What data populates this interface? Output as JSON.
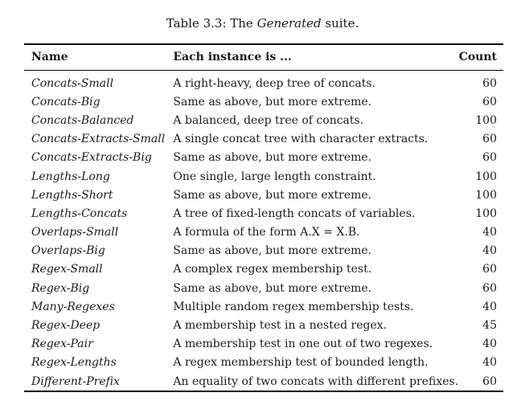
{
  "caption": {
    "prefix": "Table 3.3: The ",
    "emphasis": "Generated",
    "suffix": " suite."
  },
  "table": {
    "headers": {
      "name": "Name",
      "description": "Each instance is ...",
      "count": "Count"
    },
    "rows": [
      {
        "name": "Concats-Small",
        "description": "A right-heavy, deep tree of concats.",
        "count": "60"
      },
      {
        "name": "Concats-Big",
        "description": "Same as above, but more extreme.",
        "count": "60"
      },
      {
        "name": "Concats-Balanced",
        "description": "A balanced, deep tree of concats.",
        "count": "100"
      },
      {
        "name": "Concats-Extracts-Small",
        "description": "A single concat tree with character extracts.",
        "count": "60"
      },
      {
        "name": "Concats-Extracts-Big",
        "description": "Same as above, but more extreme.",
        "count": "60"
      },
      {
        "name": "Lengths-Long",
        "description": "One single, large length constraint.",
        "count": "100"
      },
      {
        "name": "Lengths-Short",
        "description": "Same as above, but more extreme.",
        "count": "100"
      },
      {
        "name": "Lengths-Concats",
        "description": "A tree of fixed-length concats of variables.",
        "count": "100"
      },
      {
        "name": "Overlaps-Small",
        "description": "A formula of the form A.X = X.B.",
        "count": "40"
      },
      {
        "name": "Overlaps-Big",
        "description": "Same as above, but more extreme.",
        "count": "40"
      },
      {
        "name": "Regex-Small",
        "description": "A complex regex membership test.",
        "count": "60"
      },
      {
        "name": "Regex-Big",
        "description": "Same as above, but more extreme.",
        "count": "60"
      },
      {
        "name": "Many-Regexes",
        "description": "Multiple random regex membership tests.",
        "count": "40"
      },
      {
        "name": "Regex-Deep",
        "description": "A membership test in a nested regex.",
        "count": "45"
      },
      {
        "name": "Regex-Pair",
        "description": "A membership test in one out of two regexes.",
        "count": "40"
      },
      {
        "name": "Regex-Lengths",
        "description": "A regex membership test of bounded length.",
        "count": "40"
      },
      {
        "name": "Different-Prefix",
        "description": "An equality of two concats with different prefixes.",
        "count": "60"
      }
    ]
  }
}
